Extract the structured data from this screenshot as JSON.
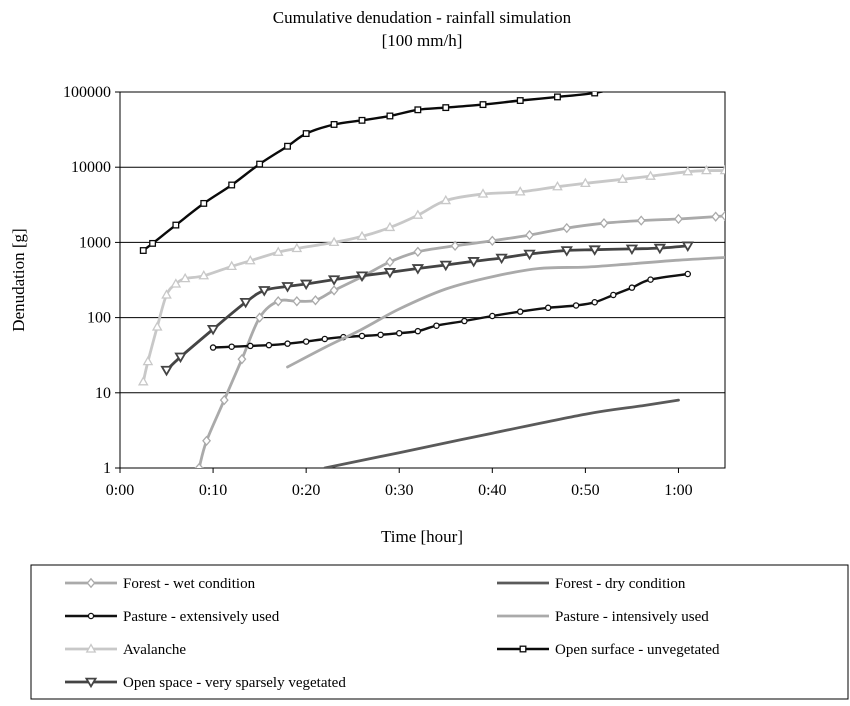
{
  "chart_data": {
    "type": "line",
    "title": "Cumulative denudation - rainfall simulation",
    "subtitle": "[100 mm/h]",
    "xlabel": "Time [hour]",
    "ylabel": "Denudation [g]",
    "x_unit": "minutes",
    "xlim": [
      0,
      65
    ],
    "ylim": [
      1,
      100000
    ],
    "y_scale": "log",
    "x_ticks": [
      0,
      10,
      20,
      30,
      40,
      50,
      60
    ],
    "x_tick_labels": [
      "0:00",
      "0:10",
      "0:20",
      "0:30",
      "0:40",
      "0:50",
      "1:00"
    ],
    "y_ticks": [
      1,
      10,
      100,
      1000,
      10000,
      100000
    ],
    "y_tick_labels": [
      "1",
      "10",
      "100",
      "1000",
      "10000",
      "100000"
    ],
    "grid": "horizontal",
    "legend_position": "bottom",
    "series": [
      {
        "name": "Forest - wet condition",
        "color": "#aaaaaa",
        "marker": "diamond",
        "points": [
          [
            8.5,
            1
          ],
          [
            9.3,
            2.3
          ],
          [
            11.2,
            8
          ],
          [
            13.1,
            28
          ],
          [
            15,
            100
          ],
          [
            17,
            165
          ],
          [
            19,
            165
          ],
          [
            21,
            170
          ],
          [
            23,
            230
          ],
          [
            26,
            350
          ],
          [
            29,
            550
          ],
          [
            32,
            750
          ],
          [
            36,
            900
          ],
          [
            40,
            1050
          ],
          [
            44,
            1250
          ],
          [
            48,
            1550
          ],
          [
            52,
            1800
          ],
          [
            56,
            1950
          ],
          [
            60,
            2050
          ],
          [
            64,
            2200
          ],
          [
            65,
            2250
          ]
        ]
      },
      {
        "name": "Forest - dry condition",
        "color": "#5a5a5a",
        "marker": "none",
        "points": [
          [
            22,
            1
          ],
          [
            30,
            1.6
          ],
          [
            40,
            2.9
          ],
          [
            50,
            5.2
          ],
          [
            56,
            6.7
          ],
          [
            60,
            8
          ]
        ]
      },
      {
        "name": "Pasture - extensively used",
        "color": "#111111",
        "marker": "circle",
        "points": [
          [
            10,
            40
          ],
          [
            12,
            41
          ],
          [
            14,
            42
          ],
          [
            16,
            43
          ],
          [
            18,
            45
          ],
          [
            20,
            48
          ],
          [
            22,
            52
          ],
          [
            24,
            55
          ],
          [
            26,
            57
          ],
          [
            28,
            59
          ],
          [
            30,
            62
          ],
          [
            32,
            66
          ],
          [
            34,
            78
          ],
          [
            37,
            90
          ],
          [
            40,
            105
          ],
          [
            43,
            120
          ],
          [
            46,
            135
          ],
          [
            49,
            145
          ],
          [
            51,
            160
          ],
          [
            53,
            200
          ],
          [
            55,
            250
          ],
          [
            57,
            320
          ],
          [
            61,
            380
          ]
        ]
      },
      {
        "name": "Pasture - intensively used",
        "color": "#aaaaaa",
        "marker": "none",
        "points": [
          [
            18,
            22
          ],
          [
            22,
            40
          ],
          [
            26,
            70
          ],
          [
            30,
            130
          ],
          [
            35,
            240
          ],
          [
            40,
            350
          ],
          [
            45,
            450
          ],
          [
            50,
            470
          ],
          [
            55,
            520
          ],
          [
            60,
            580
          ],
          [
            65,
            630
          ]
        ]
      },
      {
        "name": "Avalanche",
        "color": "#c8c8c8",
        "marker": "triangle",
        "points": [
          [
            2.5,
            14
          ],
          [
            3,
            26
          ],
          [
            4,
            75
          ],
          [
            5,
            200
          ],
          [
            6,
            280
          ],
          [
            7,
            330
          ],
          [
            9,
            360
          ],
          [
            12,
            480
          ],
          [
            14,
            570
          ],
          [
            17,
            740
          ],
          [
            19,
            830
          ],
          [
            23,
            1000
          ],
          [
            26,
            1200
          ],
          [
            29,
            1580
          ],
          [
            32,
            2300
          ],
          [
            35,
            3600
          ],
          [
            39,
            4400
          ],
          [
            43,
            4700
          ],
          [
            47,
            5500
          ],
          [
            50,
            6100
          ],
          [
            54,
            6900
          ],
          [
            57,
            7600
          ],
          [
            61,
            8700
          ],
          [
            63,
            9000
          ],
          [
            65,
            9000
          ]
        ]
      },
      {
        "name": "Open surface - unvegetated",
        "color": "#0a0a0a",
        "marker": "square",
        "points": [
          [
            2.5,
            780
          ],
          [
            3.5,
            970
          ],
          [
            6,
            1700
          ],
          [
            9,
            3300
          ],
          [
            12,
            5800
          ],
          [
            15,
            11000
          ],
          [
            18,
            19000
          ],
          [
            20,
            28000
          ],
          [
            23,
            37000
          ],
          [
            26,
            42000
          ],
          [
            29,
            48000
          ],
          [
            32,
            58000
          ],
          [
            35,
            62000
          ],
          [
            39,
            68000
          ],
          [
            43,
            77000
          ],
          [
            47,
            86000
          ],
          [
            51,
            97000
          ],
          [
            54,
            120000
          ]
        ]
      },
      {
        "name": "Open space - very sparsely vegetated",
        "color": "#444444",
        "marker": "triangle-down",
        "points": [
          [
            5,
            20
          ],
          [
            6.5,
            30
          ],
          [
            10,
            70
          ],
          [
            13.5,
            160
          ],
          [
            15.5,
            230
          ],
          [
            18,
            260
          ],
          [
            20,
            280
          ],
          [
            23,
            320
          ],
          [
            26,
            360
          ],
          [
            29,
            400
          ],
          [
            32,
            450
          ],
          [
            35,
            500
          ],
          [
            38,
            560
          ],
          [
            41,
            620
          ],
          [
            44,
            700
          ],
          [
            48,
            780
          ],
          [
            51,
            800
          ],
          [
            55,
            820
          ],
          [
            58,
            840
          ],
          [
            61,
            900
          ]
        ]
      }
    ]
  }
}
